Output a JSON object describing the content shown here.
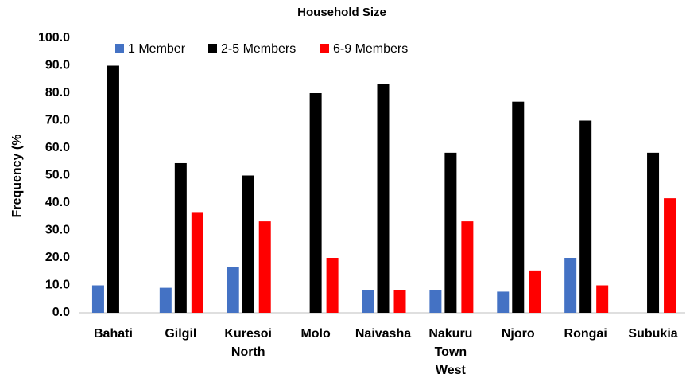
{
  "chart_data": {
    "type": "bar",
    "title": "Household Size",
    "y_label": "Frequency (%",
    "categories": [
      "Bahati",
      "Gilgil",
      "Kuresoi North",
      "Molo",
      "Naivasha",
      "Nakuru Town West",
      "Njoro",
      "Rongai",
      "Subukia"
    ],
    "series": [
      {
        "name": "1 Member",
        "color": "#4472c4",
        "values": [
          10.0,
          9.1,
          16.7,
          0,
          8.3,
          8.3,
          7.7,
          20.0,
          0
        ]
      },
      {
        "name": "2-5 Members",
        "color": "#000000",
        "values": [
          90.0,
          54.5,
          50.0,
          80.0,
          83.3,
          58.3,
          76.9,
          70.0,
          58.3
        ]
      },
      {
        "name": "6-9 Members",
        "color": "#ff0000",
        "values": [
          0,
          36.4,
          33.3,
          20.0,
          8.3,
          33.3,
          15.4,
          10.0,
          41.7
        ]
      }
    ],
    "ylim": [
      0,
      100
    ],
    "yticks": [
      {
        "value": 0,
        "label": "0.0"
      },
      {
        "value": 10,
        "label": "10.0"
      },
      {
        "value": 20,
        "label": "20.0"
      },
      {
        "value": 30,
        "label": "30.0"
      },
      {
        "value": 40,
        "label": "40.0"
      },
      {
        "value": 50,
        "label": "50.0"
      },
      {
        "value": 60,
        "label": "60.0"
      },
      {
        "value": 70,
        "label": "70.0"
      },
      {
        "value": 80,
        "label": "80.0"
      },
      {
        "value": 90,
        "label": "90.0"
      },
      {
        "value": 100,
        "label": "100.0"
      }
    ],
    "grid": false,
    "legend": "top"
  }
}
